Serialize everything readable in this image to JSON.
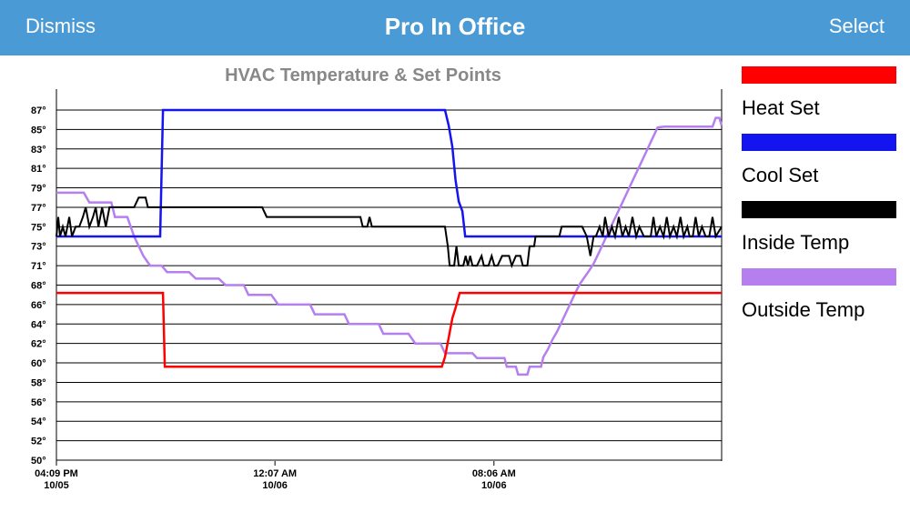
{
  "navbar": {
    "dismiss_label": "Dismiss",
    "title": "Pro In Office",
    "select_label": "Select",
    "background": "#4a9ad6"
  },
  "chart_data": {
    "type": "line",
    "title": "HVAC Temperature & Set Points",
    "ylim": [
      50,
      88
    ],
    "y_ticks": [
      "50°",
      "52°",
      "54°",
      "56°",
      "58°",
      "60°",
      "62°",
      "64°",
      "66°",
      "68°",
      "71°",
      "73°",
      "75°",
      "77°",
      "79°",
      "81°",
      "83°",
      "85°",
      "87°"
    ],
    "x_ticks": [
      {
        "label": "04:09 PM",
        "sub": "10/05",
        "t": 0
      },
      {
        "label": "12:07 AM",
        "sub": "10/06",
        "t": 478
      },
      {
        "label": "08:06 AM",
        "sub": "10/06",
        "t": 957
      }
    ],
    "xlim": [
      0,
      1455
    ],
    "grid": true,
    "legend_position": "right",
    "series": [
      {
        "name": "Heat Set",
        "color": "#ff0000",
        "points": [
          [
            0,
            67.2
          ],
          [
            233,
            67.2
          ],
          [
            237,
            59.6
          ],
          [
            843,
            59.6
          ],
          [
            850,
            60.6
          ],
          [
            858,
            62.6
          ],
          [
            866,
            64.6
          ],
          [
            874,
            65.8
          ],
          [
            882,
            67.2
          ],
          [
            1455,
            67.2
          ]
        ]
      },
      {
        "name": "Cool Set",
        "color": "#1414f0",
        "points": [
          [
            0,
            74
          ],
          [
            227,
            74
          ],
          [
            233,
            87
          ],
          [
            850,
            87
          ],
          [
            858,
            85.4
          ],
          [
            866,
            83.2
          ],
          [
            873,
            79.8
          ],
          [
            880,
            77.6
          ],
          [
            888,
            76.6
          ],
          [
            894,
            74
          ],
          [
            1455,
            74
          ]
        ]
      },
      {
        "name": "Inside Temp",
        "color": "#000000",
        "points": [
          [
            0,
            74
          ],
          [
            4,
            76
          ],
          [
            8,
            74
          ],
          [
            14,
            75
          ],
          [
            20,
            74
          ],
          [
            28,
            76
          ],
          [
            34,
            74
          ],
          [
            42,
            75
          ],
          [
            50,
            75
          ],
          [
            58,
            76
          ],
          [
            64,
            77
          ],
          [
            72,
            75
          ],
          [
            80,
            76
          ],
          [
            86,
            77
          ],
          [
            92,
            75
          ],
          [
            100,
            77
          ],
          [
            108,
            75
          ],
          [
            116,
            77
          ],
          [
            170,
            77
          ],
          [
            180,
            78
          ],
          [
            195,
            78
          ],
          [
            200,
            77
          ],
          [
            450,
            77
          ],
          [
            460,
            76
          ],
          [
            665,
            76
          ],
          [
            670,
            75
          ],
          [
            680,
            75
          ],
          [
            685,
            76
          ],
          [
            690,
            75
          ],
          [
            775,
            75
          ],
          [
            840,
            75
          ],
          [
            850,
            75
          ],
          [
            856,
            73
          ],
          [
            860,
            71
          ],
          [
            870,
            71
          ],
          [
            875,
            73
          ],
          [
            880,
            71
          ],
          [
            890,
            71
          ],
          [
            895,
            72
          ],
          [
            900,
            71
          ],
          [
            905,
            72
          ],
          [
            910,
            71
          ],
          [
            920,
            71
          ],
          [
            930,
            72
          ],
          [
            935,
            71
          ],
          [
            945,
            71
          ],
          [
            952,
            72
          ],
          [
            958,
            71
          ],
          [
            965,
            71
          ],
          [
            975,
            72
          ],
          [
            990,
            72
          ],
          [
            996,
            71
          ],
          [
            1005,
            72
          ],
          [
            1015,
            72
          ],
          [
            1020,
            71
          ],
          [
            1030,
            71
          ],
          [
            1035,
            73
          ],
          [
            1045,
            73
          ],
          [
            1048,
            74
          ],
          [
            1100,
            74
          ],
          [
            1105,
            75
          ],
          [
            1150,
            75
          ],
          [
            1160,
            74
          ],
          [
            1168,
            72
          ],
          [
            1175,
            74
          ],
          [
            1180,
            74
          ],
          [
            1188,
            75
          ],
          [
            1195,
            74
          ],
          [
            1200,
            76
          ],
          [
            1208,
            74
          ],
          [
            1215,
            75
          ],
          [
            1222,
            74
          ],
          [
            1230,
            76
          ],
          [
            1238,
            74
          ],
          [
            1245,
            75
          ],
          [
            1252,
            74
          ],
          [
            1260,
            76
          ],
          [
            1268,
            74
          ],
          [
            1275,
            75
          ],
          [
            1285,
            74
          ],
          [
            1300,
            74
          ],
          [
            1306,
            76
          ],
          [
            1312,
            74
          ],
          [
            1320,
            75
          ],
          [
            1328,
            74
          ],
          [
            1335,
            76
          ],
          [
            1342,
            74
          ],
          [
            1350,
            75
          ],
          [
            1357,
            74
          ],
          [
            1365,
            76
          ],
          [
            1372,
            74
          ],
          [
            1380,
            75
          ],
          [
            1385,
            74
          ],
          [
            1392,
            74
          ],
          [
            1398,
            76
          ],
          [
            1405,
            74
          ],
          [
            1412,
            75
          ],
          [
            1420,
            74
          ],
          [
            1428,
            74
          ],
          [
            1435,
            76
          ],
          [
            1442,
            74
          ],
          [
            1455,
            75
          ]
        ]
      },
      {
        "name": "Outside Temp",
        "color": "#b57ff0",
        "points": [
          [
            0,
            78.5
          ],
          [
            60,
            78.5
          ],
          [
            72,
            77.5
          ],
          [
            120,
            77.5
          ],
          [
            128,
            76
          ],
          [
            155,
            76
          ],
          [
            170,
            74
          ],
          [
            190,
            72
          ],
          [
            205,
            71
          ],
          [
            230,
            71
          ],
          [
            242,
            70
          ],
          [
            290,
            70
          ],
          [
            305,
            69
          ],
          [
            355,
            69
          ],
          [
            370,
            68
          ],
          [
            410,
            68
          ],
          [
            420,
            67
          ],
          [
            470,
            67
          ],
          [
            485,
            66
          ],
          [
            555,
            66
          ],
          [
            565,
            65
          ],
          [
            630,
            65
          ],
          [
            640,
            64
          ],
          [
            705,
            64
          ],
          [
            715,
            63
          ],
          [
            770,
            63
          ],
          [
            785,
            62
          ],
          [
            840,
            62
          ],
          [
            850,
            61
          ],
          [
            910,
            61
          ],
          [
            920,
            60.5
          ],
          [
            980,
            60.5
          ],
          [
            985,
            59.6
          ],
          [
            1005,
            59.6
          ],
          [
            1010,
            58.8
          ],
          [
            1030,
            58.8
          ],
          [
            1035,
            59.6
          ],
          [
            1060,
            59.6
          ],
          [
            1065,
            60.6
          ],
          [
            1075,
            61.4
          ],
          [
            1085,
            62.4
          ],
          [
            1095,
            63.2
          ],
          [
            1105,
            64.2
          ],
          [
            1115,
            65.2
          ],
          [
            1125,
            66.2
          ],
          [
            1135,
            67.2
          ],
          [
            1145,
            68.2
          ],
          [
            1155,
            69.2
          ],
          [
            1165,
            70.2
          ],
          [
            1175,
            71.2
          ],
          [
            1185,
            72.2
          ],
          [
            1195,
            73.2
          ],
          [
            1205,
            74.2
          ],
          [
            1215,
            75.2
          ],
          [
            1225,
            76.2
          ],
          [
            1235,
            77.2
          ],
          [
            1245,
            78.2
          ],
          [
            1255,
            79.2
          ],
          [
            1265,
            80.2
          ],
          [
            1275,
            81.2
          ],
          [
            1285,
            82.2
          ],
          [
            1295,
            83.2
          ],
          [
            1305,
            84.2
          ],
          [
            1315,
            85.2
          ],
          [
            1330,
            85.3
          ],
          [
            1435,
            85.3
          ],
          [
            1442,
            86.2
          ],
          [
            1450,
            86.2
          ],
          [
            1455,
            85.4
          ]
        ]
      }
    ]
  }
}
